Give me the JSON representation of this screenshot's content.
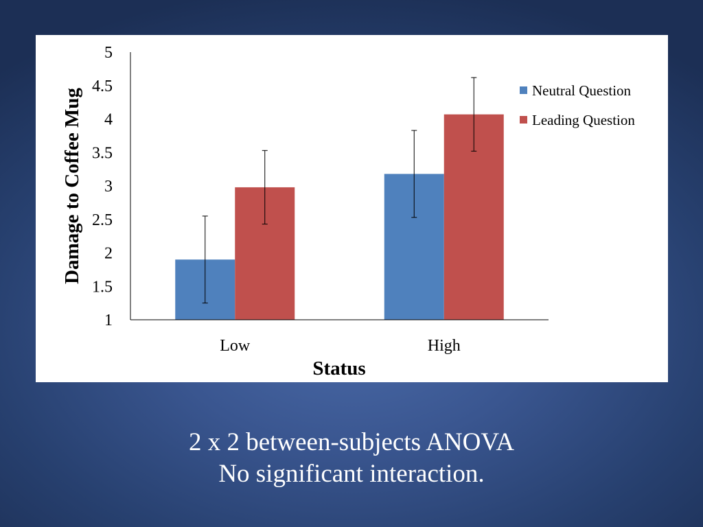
{
  "chart_data": {
    "type": "bar",
    "title": "",
    "xlabel": "Status",
    "ylabel": "Damage to Coffee Mug",
    "categories": [
      "Low",
      "High"
    ],
    "ylim": [
      1,
      5
    ],
    "yticks": [
      "1",
      "1.5",
      "2",
      "2.5",
      "3",
      "3.5",
      "4",
      "4.5",
      "5"
    ],
    "grid": false,
    "legend_position": "right",
    "series": [
      {
        "name": "Neutral Question",
        "color": "#4f81bd",
        "values": [
          1.9,
          3.18
        ],
        "errors": [
          0.65,
          0.65
        ]
      },
      {
        "name": "Leading Question",
        "color": "#c0504d",
        "values": [
          2.98,
          4.07
        ],
        "errors": [
          0.55,
          0.55
        ]
      }
    ]
  },
  "caption": {
    "line1": "2 x 2 between-subjects ANOVA",
    "line2": "No significant interaction."
  }
}
